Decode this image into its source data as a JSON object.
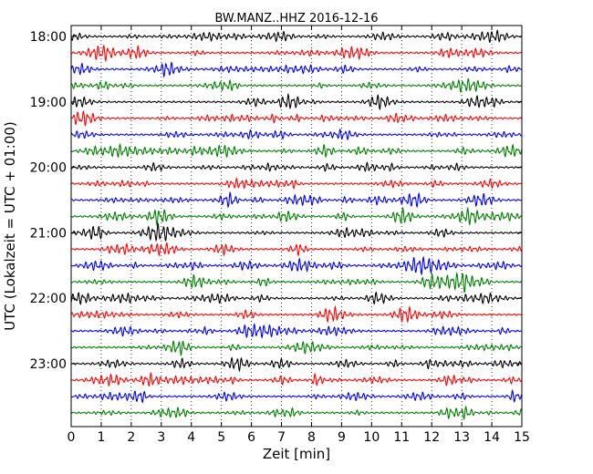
{
  "chart_data": {
    "type": "line",
    "title": "BW.MANZ..HHZ 2016-12-16",
    "xlabel": "Zeit  [min]",
    "ylabel": "UTC (Lokalzeit = UTC + 01:00)",
    "xlim": [
      0,
      15
    ],
    "x_ticks": [
      "0",
      "1",
      "2",
      "3",
      "4",
      "5",
      "6",
      "7",
      "8",
      "9",
      "10",
      "11",
      "12",
      "13",
      "14",
      "15"
    ],
    "y_ticks": [
      {
        "label": "18:00",
        "row": 0
      },
      {
        "label": "19:00",
        "row": 4
      },
      {
        "label": "20:00",
        "row": 8
      },
      {
        "label": "21:00",
        "row": 12
      },
      {
        "label": "22:00",
        "row": 16
      },
      {
        "label": "23:00",
        "row": 20
      }
    ],
    "trace_count": 24,
    "trace_minutes_each": 15,
    "trace_start": "18:00",
    "colors": [
      "#000000",
      "#ff0000",
      "#0000ff",
      "#008000"
    ],
    "vertical_grid": "dotted, every minute"
  }
}
